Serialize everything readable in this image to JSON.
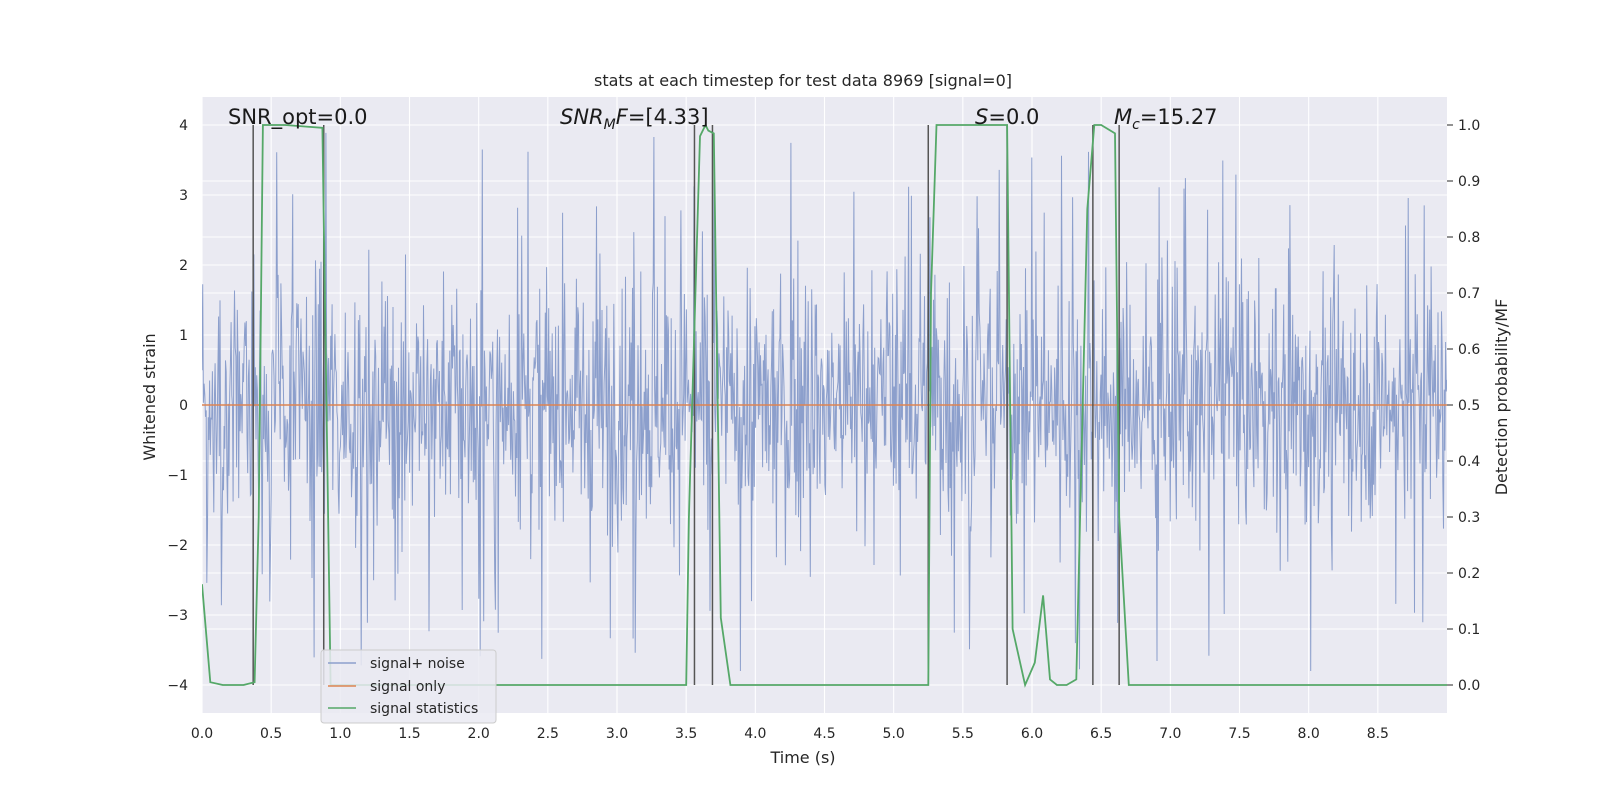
{
  "chart_data": {
    "type": "line",
    "title": "stats at each timestep for test data 8969 [signal=0]",
    "xlabel": "Time (s)",
    "ylabel": "Whitened strain",
    "ylabel_right": "Detection probability/MF",
    "xlim": [
      0.0,
      9.0
    ],
    "ylim": [
      -4.4,
      4.4
    ],
    "ylim_right": [
      -0.05,
      1.05
    ],
    "xticks": [
      0.0,
      0.5,
      1.0,
      1.5,
      2.0,
      2.5,
      3.0,
      3.5,
      4.0,
      4.5,
      5.0,
      5.5,
      6.0,
      6.5,
      7.0,
      7.5,
      8.0,
      8.5
    ],
    "xtick_labels": [
      "0.0",
      "0.5",
      "1.0",
      "1.5",
      "2.0",
      "2.5",
      "3.0",
      "3.5",
      "4.0",
      "4.5",
      "5.0",
      "5.5",
      "6.0",
      "6.5",
      "7.0",
      "7.5",
      "8.0",
      "8.5"
    ],
    "yticks": [
      -4,
      -3,
      -2,
      -1,
      0,
      1,
      2,
      3,
      4
    ],
    "ytick_labels": [
      "−4",
      "−3",
      "−2",
      "−1",
      "0",
      "1",
      "2",
      "3",
      "4"
    ],
    "yticks_right": [
      0.0,
      0.1,
      0.2,
      0.3,
      0.4,
      0.5,
      0.6,
      0.7,
      0.8,
      0.9,
      1.0
    ],
    "ytick_labels_right": [
      "0.0",
      "0.1",
      "0.2",
      "0.3",
      "0.4",
      "0.5",
      "0.6",
      "0.7",
      "0.8",
      "0.9",
      "1.0"
    ],
    "grid": true,
    "legend_position": "lower-left",
    "series": [
      {
        "name": "signal+ noise",
        "color": "#8c9fcc",
        "kind": "noise",
        "axis": "left",
        "x_range": [
          0.0,
          9.0
        ],
        "typical_range": [
          -1.6,
          1.7
        ],
        "extremes": [
          -3.8,
          3.9
        ]
      },
      {
        "name": "signal only",
        "color": "#dd8452",
        "axis": "left",
        "x": [
          0.0,
          9.0
        ],
        "y": [
          0.0,
          0.0
        ]
      },
      {
        "name": "signal statistics",
        "color": "#55a868",
        "axis": "right",
        "x": [
          0.0,
          0.06,
          0.15,
          0.3,
          0.38,
          0.41,
          0.44,
          0.6,
          0.87,
          0.93,
          1.0,
          2.0,
          3.0,
          3.5,
          3.52,
          3.6,
          3.64,
          3.66,
          3.7,
          3.75,
          3.82,
          4.0,
          5.0,
          5.25,
          5.27,
          5.31,
          5.6,
          5.82,
          5.86,
          5.95,
          6.02,
          6.08,
          6.13,
          6.18,
          6.25,
          6.32,
          6.4,
          6.45,
          6.5,
          6.6,
          6.63,
          6.7,
          6.75,
          7.0,
          8.0,
          9.0
        ],
        "y": [
          0.18,
          0.005,
          0.0,
          0.0,
          0.005,
          0.3,
          1.0,
          1.0,
          0.995,
          0.0,
          0.0,
          0.0,
          0.0,
          0.0,
          0.3,
          0.98,
          1.0,
          0.99,
          0.985,
          0.12,
          0.0,
          0.0,
          0.0,
          0.0,
          0.7,
          1.0,
          1.0,
          1.0,
          0.1,
          0.0,
          0.04,
          0.16,
          0.01,
          0.0,
          0.0,
          0.01,
          0.85,
          1.0,
          1.0,
          0.985,
          0.3,
          0.0,
          0.0,
          0.0,
          0.0,
          0.0
        ]
      }
    ],
    "vertical_lines": [
      0.37,
      0.88,
      3.56,
      3.69,
      5.25,
      5.82,
      6.44,
      6.63
    ],
    "vertical_line_color": "#555555",
    "annotations": [
      {
        "key": "snr_opt",
        "text": "SNR_opt=0.0",
        "x": 0.2
      },
      {
        "key": "snr_mf",
        "label": "SNR",
        "sub": "M",
        "label_tail": "F",
        "value": "=[4.33]",
        "x": 2.6
      },
      {
        "key": "s",
        "label": "S",
        "value": "=0.0",
        "x": 5.6
      },
      {
        "key": "mc",
        "label": "M",
        "sub": "c",
        "value": "=15.27",
        "x": 6.6
      }
    ]
  }
}
